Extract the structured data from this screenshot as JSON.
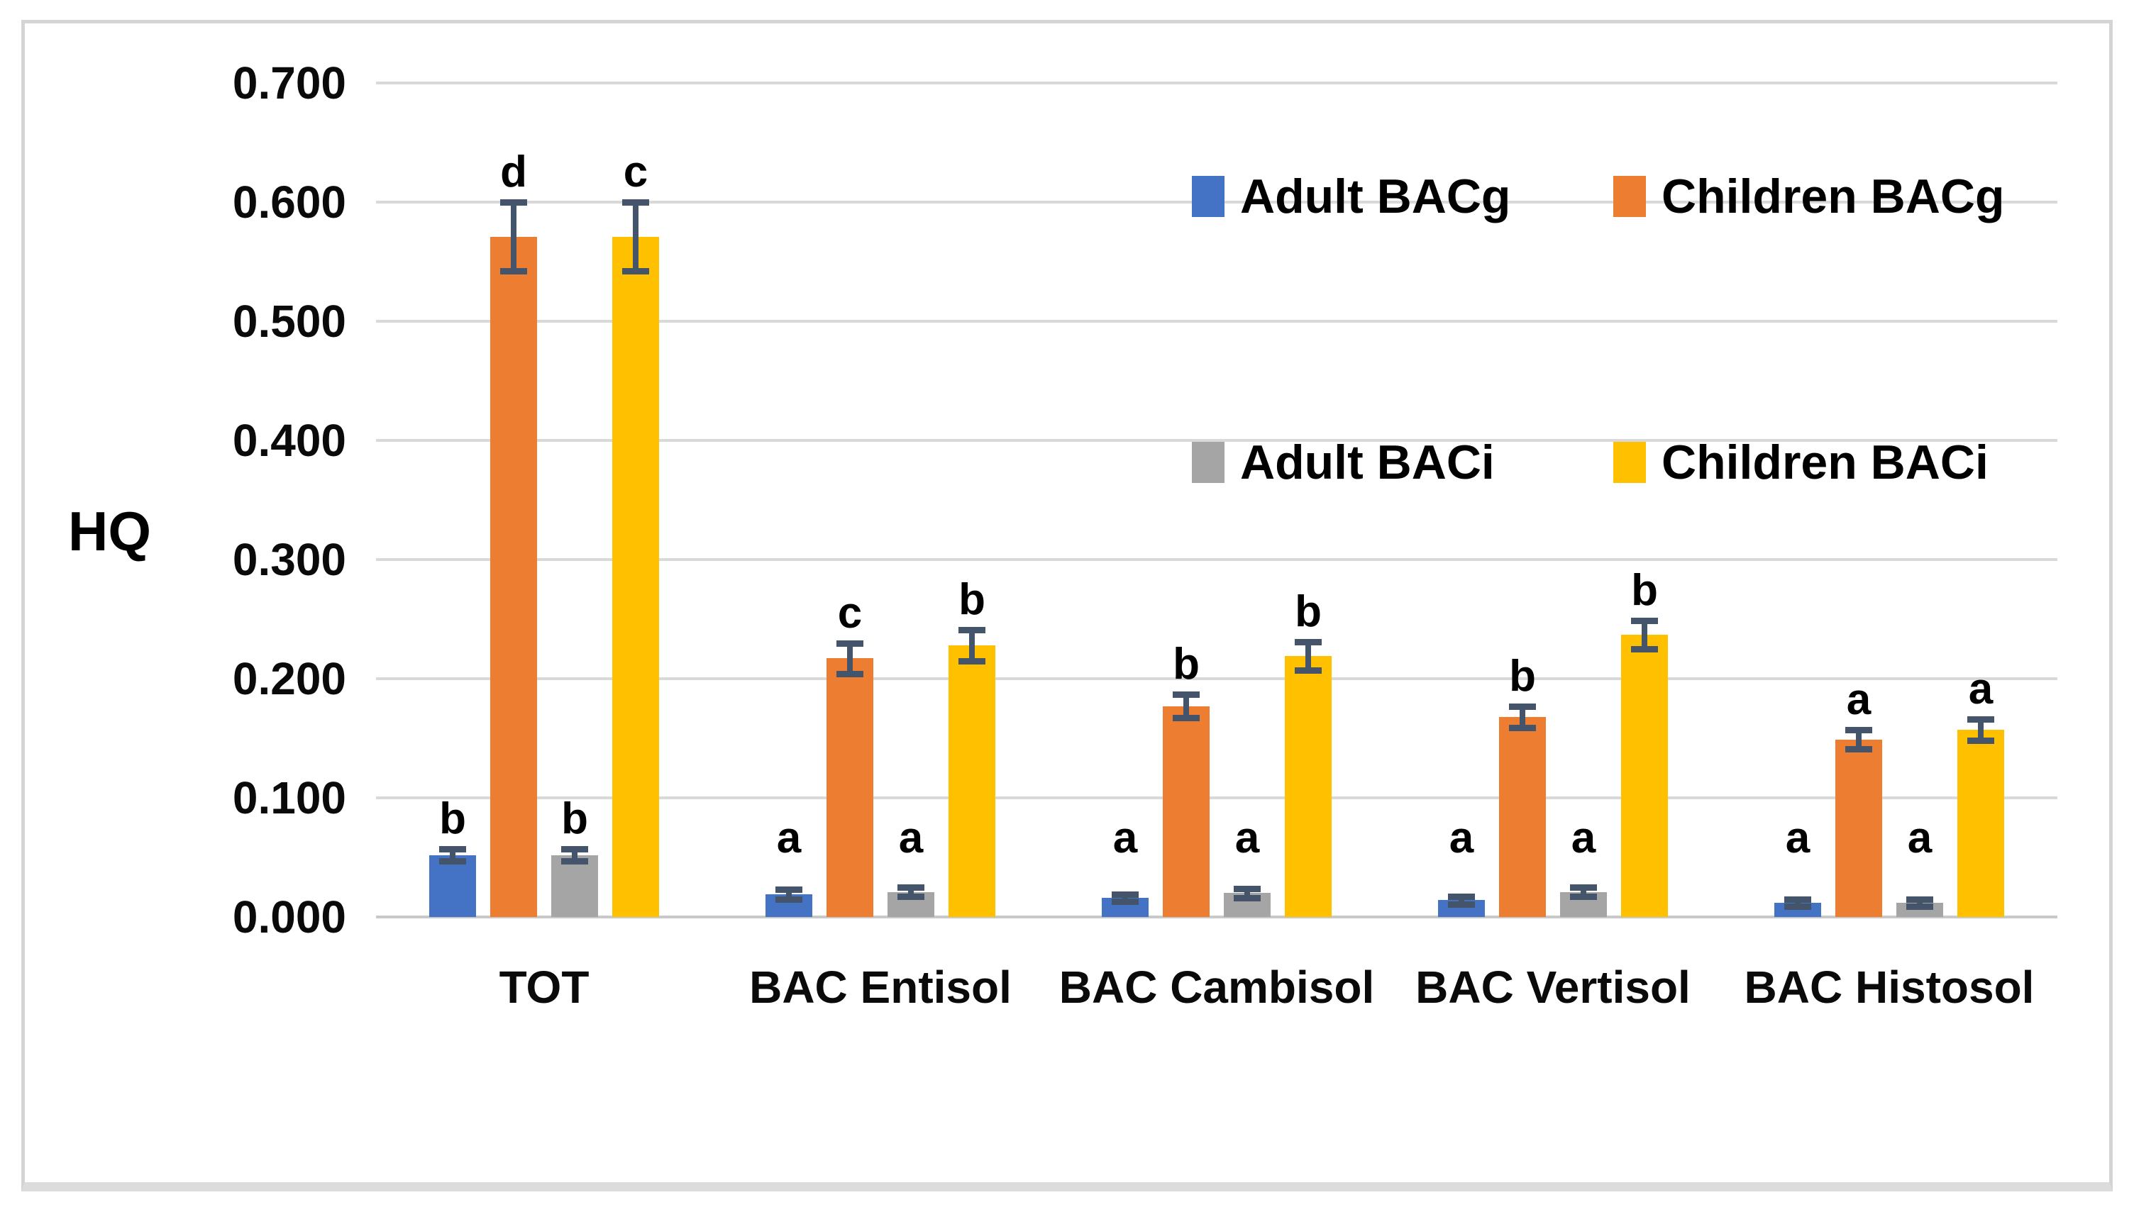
{
  "figure": {
    "ylabel": "HQ",
    "frame_border_color": "#d4d4d4",
    "gridline_color": "#d9d9d9",
    "error_bar_color": "#44546A"
  },
  "legend": {
    "items": [
      {
        "label": "Adult BACg",
        "color": "#4472C4"
      },
      {
        "label": "Children BACg",
        "color": "#ED7D31"
      },
      {
        "label": "Adult BACi",
        "color": "#A5A5A5"
      },
      {
        "label": "Children BACi",
        "color": "#FFC000"
      }
    ]
  },
  "chart_data": {
    "type": "bar",
    "title": "",
    "xlabel": "",
    "ylabel": "HQ",
    "ylim": [
      0,
      0.7
    ],
    "ytick_step": 0.1,
    "ytick_labels": [
      "0.000",
      "0.100",
      "0.200",
      "0.300",
      "0.400",
      "0.500",
      "0.600",
      "0.700"
    ],
    "grid": true,
    "legend_position": "top-right",
    "categories": [
      "TOT",
      "BAC Entisol",
      "BAC Cambisol",
      "BAC Vertisol",
      "BAC Histosol"
    ],
    "series": [
      {
        "name": "Adult BACg",
        "color": "#4472C4",
        "values": [
          0.052,
          0.019,
          0.016,
          0.014,
          0.012
        ],
        "errors": [
          0.005,
          0.004,
          0.003,
          0.003,
          0.003
        ],
        "letters": [
          "b",
          "a",
          "a",
          "a",
          "a"
        ]
      },
      {
        "name": "Children BACg",
        "color": "#ED7D31",
        "values": [
          0.571,
          0.217,
          0.177,
          0.168,
          0.149
        ],
        "errors": [
          0.029,
          0.013,
          0.01,
          0.009,
          0.008
        ],
        "letters": [
          "d",
          "c",
          "b",
          "b",
          "a"
        ]
      },
      {
        "name": "Adult BACi",
        "color": "#A5A5A5",
        "values": [
          0.052,
          0.021,
          0.02,
          0.021,
          0.012
        ],
        "errors": [
          0.005,
          0.004,
          0.004,
          0.004,
          0.003
        ],
        "letters": [
          "b",
          "a",
          "a",
          "a",
          "a"
        ]
      },
      {
        "name": "Children BACi",
        "color": "#FFC000",
        "values": [
          0.571,
          0.228,
          0.219,
          0.237,
          0.157
        ],
        "errors": [
          0.029,
          0.013,
          0.012,
          0.012,
          0.009
        ],
        "letters": [
          "c",
          "b",
          "b",
          "b",
          "a"
        ]
      }
    ],
    "error_bar_color": "#44546A"
  }
}
